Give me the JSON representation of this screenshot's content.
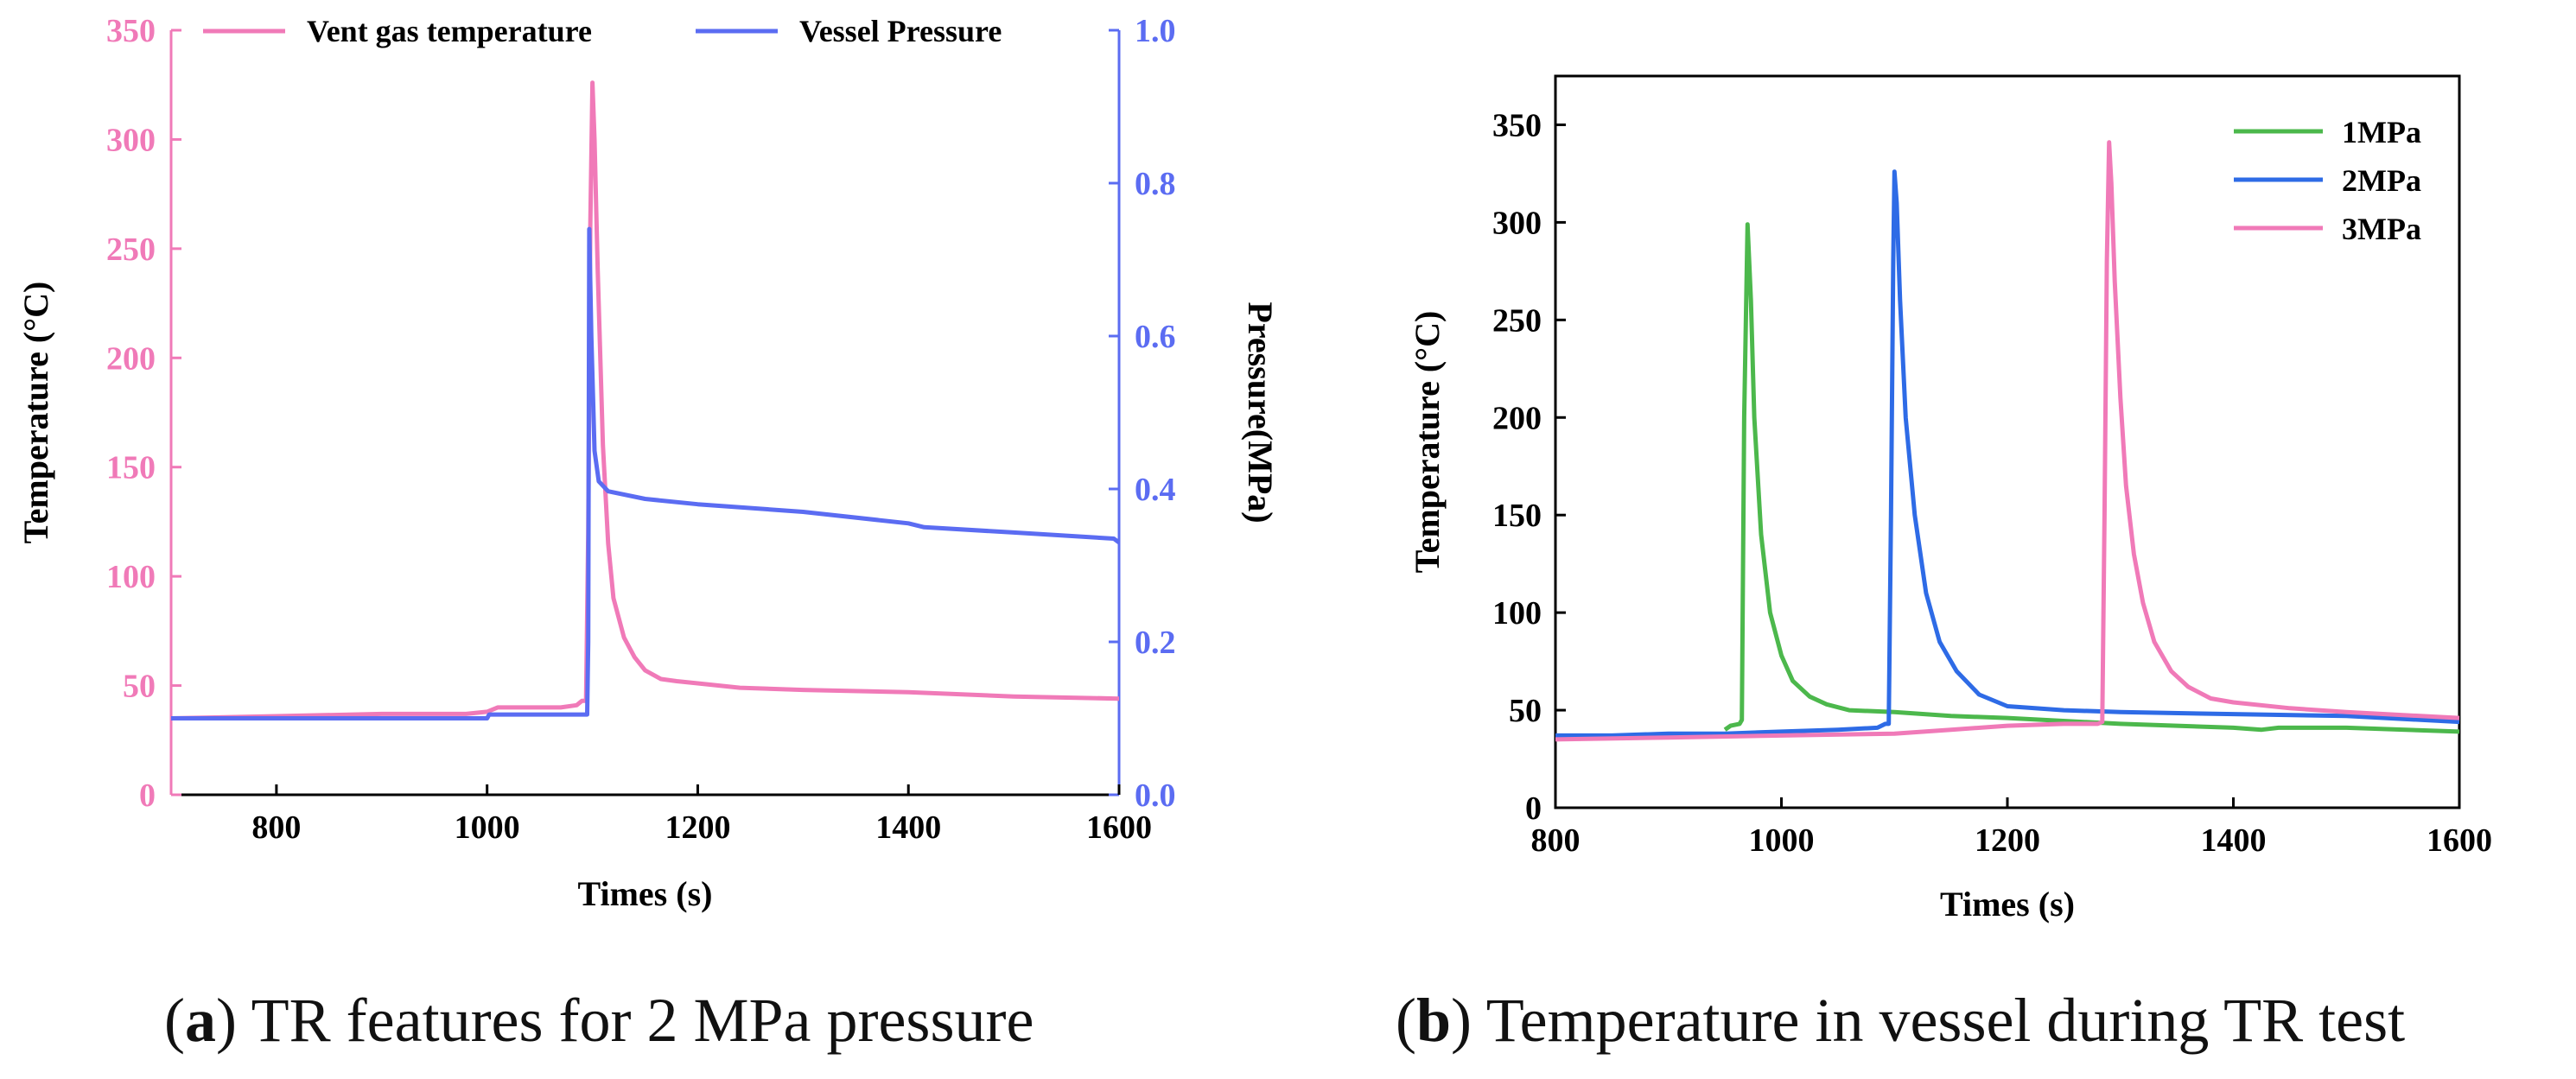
{
  "captions": {
    "a": {
      "letter": "a",
      "text": "TR features for 2 MPa pressure"
    },
    "b": {
      "letter": "b",
      "text": "Temperature in vessel during TR test"
    }
  },
  "colors": {
    "pink": "#f07ab8",
    "blue": "#5b6cf2",
    "green": "#4cb84c",
    "blue_b": "#2e6be6",
    "axis": "#000000"
  },
  "chart_data": [
    {
      "type": "line",
      "xlabel": "Times (s)",
      "ylabel": "Temperature (°C)",
      "y2label": "Pressure(MPa)",
      "xlim": [
        700,
        1600
      ],
      "ylim": [
        0,
        350
      ],
      "y2lim": [
        0,
        1.0
      ],
      "xticks": [
        800,
        1000,
        1200,
        1400,
        1600
      ],
      "yticks": [
        0,
        50,
        100,
        150,
        200,
        250,
        300,
        350
      ],
      "y2ticks": [
        0.0,
        0.2,
        0.4,
        0.6,
        0.8,
        1.0
      ],
      "legend_position": "top",
      "series": [
        {
          "name": "Vent gas temperature",
          "axis": "left",
          "color": "#f07ab8",
          "points": [
            [
              700,
              35
            ],
            [
              800,
              36
            ],
            [
              900,
              37
            ],
            [
              980,
              37
            ],
            [
              1000,
              38
            ],
            [
              1010,
              40
            ],
            [
              1070,
              40
            ],
            [
              1085,
              41
            ],
            [
              1090,
              43
            ],
            [
              1094,
              43
            ],
            [
              1096,
              120
            ],
            [
              1098,
              260
            ],
            [
              1100,
              326
            ],
            [
              1102,
              300
            ],
            [
              1105,
              240
            ],
            [
              1110,
              160
            ],
            [
              1115,
              115
            ],
            [
              1120,
              90
            ],
            [
              1130,
              72
            ],
            [
              1140,
              63
            ],
            [
              1150,
              57
            ],
            [
              1165,
              53
            ],
            [
              1180,
              52
            ],
            [
              1200,
              51
            ],
            [
              1240,
              49
            ],
            [
              1300,
              48
            ],
            [
              1400,
              47
            ],
            [
              1500,
              45
            ],
            [
              1600,
              44
            ]
          ]
        },
        {
          "name": "Vessel Pressure",
          "axis": "right",
          "color": "#5b6cf2",
          "points": [
            [
              700,
              0.1
            ],
            [
              1000,
              0.1
            ],
            [
              1002,
              0.105
            ],
            [
              1095,
              0.105
            ],
            [
              1096,
              0.2
            ],
            [
              1097,
              0.74
            ],
            [
              1099,
              0.6
            ],
            [
              1102,
              0.45
            ],
            [
              1106,
              0.41
            ],
            [
              1115,
              0.397
            ],
            [
              1150,
              0.387
            ],
            [
              1200,
              0.38
            ],
            [
              1300,
              0.37
            ],
            [
              1400,
              0.355
            ],
            [
              1415,
              0.35
            ],
            [
              1500,
              0.343
            ],
            [
              1595,
              0.335
            ],
            [
              1600,
              0.33
            ]
          ]
        }
      ]
    },
    {
      "type": "line",
      "xlabel": "Times (s)",
      "ylabel": "Temperature (°C)",
      "xlim": [
        800,
        1600
      ],
      "ylim": [
        0,
        375
      ],
      "xticks": [
        800,
        1000,
        1200,
        1400,
        1600
      ],
      "yticks": [
        0,
        50,
        100,
        150,
        200,
        250,
        300,
        350
      ],
      "legend_position": "top-right",
      "series": [
        {
          "name": "1MPa",
          "color": "#4cb84c",
          "points": [
            [
              950,
              40
            ],
            [
              955,
              42
            ],
            [
              963,
              43
            ],
            [
              965,
              45
            ],
            [
              967,
              200
            ],
            [
              970,
              299
            ],
            [
              973,
              260
            ],
            [
              976,
              200
            ],
            [
              982,
              140
            ],
            [
              990,
              100
            ],
            [
              1000,
              78
            ],
            [
              1010,
              65
            ],
            [
              1025,
              57
            ],
            [
              1040,
              53
            ],
            [
              1060,
              50
            ],
            [
              1100,
              49
            ],
            [
              1150,
              47
            ],
            [
              1200,
              46
            ],
            [
              1300,
              43
            ],
            [
              1400,
              41
            ],
            [
              1425,
              40
            ],
            [
              1440,
              41
            ],
            [
              1500,
              41
            ],
            [
              1600,
              39
            ]
          ]
        },
        {
          "name": "2MPa",
          "color": "#2e6be6",
          "points": [
            [
              800,
              37
            ],
            [
              850,
              37
            ],
            [
              900,
              38
            ],
            [
              950,
              38
            ],
            [
              1000,
              39
            ],
            [
              1050,
              40
            ],
            [
              1085,
              41
            ],
            [
              1092,
              43
            ],
            [
              1095,
              43
            ],
            [
              1097,
              150
            ],
            [
              1099,
              280
            ],
            [
              1100,
              326
            ],
            [
              1102,
              310
            ],
            [
              1105,
              260
            ],
            [
              1110,
              200
            ],
            [
              1118,
              150
            ],
            [
              1128,
              110
            ],
            [
              1140,
              85
            ],
            [
              1155,
              70
            ],
            [
              1175,
              58
            ],
            [
              1200,
              52
            ],
            [
              1250,
              50
            ],
            [
              1300,
              49
            ],
            [
              1400,
              48
            ],
            [
              1500,
              47
            ],
            [
              1600,
              44
            ]
          ]
        },
        {
          "name": "3MPa",
          "color": "#f07ab8",
          "points": [
            [
              800,
              35
            ],
            [
              900,
              36
            ],
            [
              1000,
              37
            ],
            [
              1100,
              38
            ],
            [
              1150,
              40
            ],
            [
              1200,
              42
            ],
            [
              1250,
              43
            ],
            [
              1280,
              43
            ],
            [
              1284,
              44
            ],
            [
              1286,
              150
            ],
            [
              1288,
              280
            ],
            [
              1290,
              341
            ],
            [
              1292,
              320
            ],
            [
              1295,
              270
            ],
            [
              1300,
              210
            ],
            [
              1305,
              165
            ],
            [
              1312,
              130
            ],
            [
              1320,
              105
            ],
            [
              1330,
              85
            ],
            [
              1345,
              70
            ],
            [
              1360,
              62
            ],
            [
              1380,
              56
            ],
            [
              1400,
              54
            ],
            [
              1450,
              51
            ],
            [
              1500,
              49
            ],
            [
              1600,
              46
            ]
          ]
        }
      ]
    }
  ]
}
